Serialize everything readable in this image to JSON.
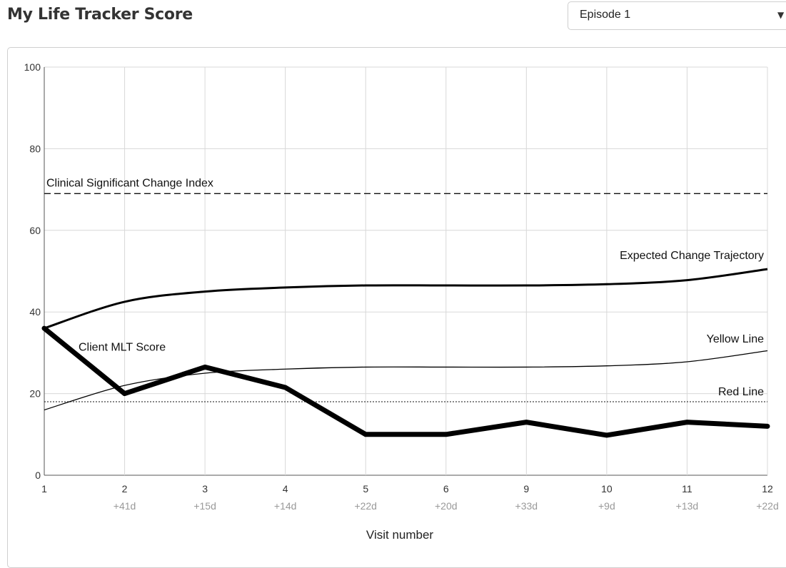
{
  "header": {
    "title": "My Life Tracker Score",
    "episode_select": {
      "value": "Episode 1",
      "arrow": "▼"
    }
  },
  "chart_data": {
    "type": "line",
    "title": "",
    "xlabel": "Visit number",
    "ylabel": "",
    "ylim": [
      0,
      100
    ],
    "yticks": [
      0,
      20,
      40,
      60,
      80,
      100
    ],
    "grid": true,
    "categories": [
      "1",
      "2",
      "3",
      "4",
      "5",
      "6",
      "9",
      "10",
      "11",
      "12"
    ],
    "category_intervals": [
      "",
      "+41d",
      "+15d",
      "+14d",
      "+22d",
      "+20d",
      "+33d",
      "+9d",
      "+13d",
      "+22d"
    ],
    "series": [
      {
        "name": "Client MLT Score",
        "style": "thick",
        "color": "#000000",
        "values": [
          36,
          20,
          26.5,
          21.5,
          10,
          10,
          13,
          9.8,
          13,
          12
        ]
      },
      {
        "name": "Expected Change Trajectory",
        "style": "medium",
        "color": "#000000",
        "values": [
          36,
          42.5,
          45,
          46,
          46.5,
          46.5,
          46.5,
          46.8,
          47.8,
          50.5
        ]
      },
      {
        "name": "Yellow Line",
        "style": "thin",
        "color": "#000000",
        "values": [
          16,
          22,
          25,
          26,
          26.5,
          26.5,
          26.5,
          26.8,
          27.8,
          30.5
        ]
      }
    ],
    "reference_lines": [
      {
        "name": "Clinical Significant Change Index",
        "value": 69,
        "style": "dashed"
      },
      {
        "name": "Red Line",
        "value": 18,
        "style": "dotted"
      }
    ]
  }
}
